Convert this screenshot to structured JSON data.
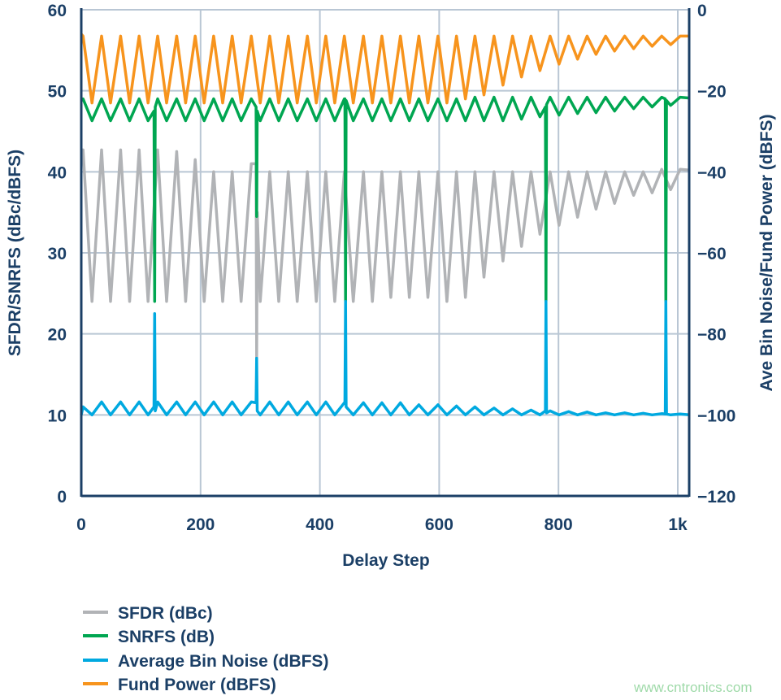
{
  "chart_data": {
    "type": "line",
    "xlabel": "Delay Step",
    "ylabel_left": "SFDR/SNRFS (dBc/dBFS)",
    "ylabel_right": "Ave Bin Noise/Fund Power (dBFS)",
    "xlim": [
      0,
      1020
    ],
    "ylim_left": [
      0,
      60
    ],
    "ylim_right": [
      -120,
      0
    ],
    "grid": true,
    "legend_position": "bottom-left",
    "x_ticks": [
      {
        "value": 0,
        "label": "0"
      },
      {
        "value": 200,
        "label": "200"
      },
      {
        "value": 400,
        "label": "400"
      },
      {
        "value": 600,
        "label": "600"
      },
      {
        "value": 800,
        "label": "800"
      },
      {
        "value": 1000,
        "label": "1k"
      }
    ],
    "y_ticks_left": [
      "0",
      "10",
      "20",
      "30",
      "40",
      "50",
      "60"
    ],
    "y_ticks_right": [
      "−120",
      "−100",
      "−80",
      "−60",
      "−40",
      "−20",
      "0"
    ],
    "series": [
      {
        "name": "SFDR (dBc)",
        "axis": "left",
        "color": "#b1b3b6",
        "points": [
          [
            0,
            42.7
          ],
          [
            3,
            42.7
          ],
          [
            18,
            24
          ],
          [
            34,
            42.7
          ],
          [
            49,
            24
          ],
          [
            66,
            42.7
          ],
          [
            81,
            24
          ],
          [
            97,
            42.7
          ],
          [
            112,
            24
          ],
          [
            128,
            42.7
          ],
          [
            143,
            24
          ],
          [
            160,
            42.5
          ],
          [
            175,
            24
          ],
          [
            191,
            41.5
          ],
          [
            206,
            24
          ],
          [
            222,
            40
          ],
          [
            237,
            24
          ],
          [
            253,
            40
          ],
          [
            268,
            24
          ],
          [
            285,
            41
          ],
          [
            293,
            41
          ],
          [
            294,
            17
          ],
          [
            295,
            35
          ],
          [
            300,
            24
          ],
          [
            316,
            40
          ],
          [
            331,
            24
          ],
          [
            347,
            40
          ],
          [
            362,
            24
          ],
          [
            379,
            40
          ],
          [
            394,
            24
          ],
          [
            410,
            40
          ],
          [
            425,
            24
          ],
          [
            441,
            40
          ],
          [
            456,
            24
          ],
          [
            473,
            40
          ],
          [
            488,
            24
          ],
          [
            504,
            40
          ],
          [
            519,
            24.5
          ],
          [
            535,
            40
          ],
          [
            550,
            24.5
          ],
          [
            566,
            40
          ],
          [
            581,
            24.5
          ],
          [
            598,
            40
          ],
          [
            613,
            24
          ],
          [
            629,
            40
          ],
          [
            644,
            24.5
          ],
          [
            660,
            40
          ],
          [
            675,
            27
          ],
          [
            692,
            40
          ],
          [
            707,
            29
          ],
          [
            723,
            40
          ],
          [
            738,
            30.8
          ],
          [
            754,
            40
          ],
          [
            769,
            32.3
          ],
          [
            786,
            40
          ],
          [
            801,
            33.4
          ],
          [
            817,
            40
          ],
          [
            832,
            34.4
          ],
          [
            848,
            40
          ],
          [
            863,
            35.4
          ],
          [
            879,
            40
          ],
          [
            894,
            36.1
          ],
          [
            911,
            40
          ],
          [
            926,
            37.1
          ],
          [
            942,
            40
          ],
          [
            957,
            37.4
          ],
          [
            973,
            40.3
          ],
          [
            988,
            37.8
          ],
          [
            1004,
            40.3
          ],
          [
            1020,
            40.2
          ]
        ]
      },
      {
        "name": "SNRFS (dB)",
        "axis": "left",
        "color": "#00a651",
        "points": [
          [
            0,
            49
          ],
          [
            3,
            49
          ],
          [
            18,
            46.3
          ],
          [
            34,
            49
          ],
          [
            49,
            46.3
          ],
          [
            66,
            49
          ],
          [
            81,
            46.3
          ],
          [
            97,
            49
          ],
          [
            112,
            46.3
          ],
          [
            122,
            47.5
          ],
          [
            123,
            24
          ],
          [
            124,
            48
          ],
          [
            128,
            49
          ],
          [
            143,
            46.3
          ],
          [
            160,
            49
          ],
          [
            175,
            46.3
          ],
          [
            191,
            49
          ],
          [
            206,
            46.3
          ],
          [
            222,
            49
          ],
          [
            237,
            46.3
          ],
          [
            253,
            49
          ],
          [
            268,
            46.3
          ],
          [
            285,
            49
          ],
          [
            293,
            48
          ],
          [
            294,
            34.5
          ],
          [
            295,
            47.5
          ],
          [
            300,
            46.3
          ],
          [
            316,
            49
          ],
          [
            331,
            46.3
          ],
          [
            347,
            49
          ],
          [
            362,
            46.3
          ],
          [
            379,
            49
          ],
          [
            394,
            46.3
          ],
          [
            410,
            49
          ],
          [
            425,
            46.3
          ],
          [
            441,
            49
          ],
          [
            442,
            49
          ],
          [
            443,
            24
          ],
          [
            444,
            48.8
          ],
          [
            456,
            46.3
          ],
          [
            473,
            49
          ],
          [
            488,
            46.3
          ],
          [
            504,
            49
          ],
          [
            519,
            46.3
          ],
          [
            535,
            49
          ],
          [
            550,
            46.3
          ],
          [
            566,
            49
          ],
          [
            581,
            46.3
          ],
          [
            598,
            49
          ],
          [
            613,
            46.3
          ],
          [
            629,
            49
          ],
          [
            644,
            46.3
          ],
          [
            660,
            49.2
          ],
          [
            675,
            46.3
          ],
          [
            692,
            49.2
          ],
          [
            707,
            46.3
          ],
          [
            723,
            49.2
          ],
          [
            738,
            46.5
          ],
          [
            754,
            49.2
          ],
          [
            769,
            46.8
          ],
          [
            778,
            48
          ],
          [
            779,
            24
          ],
          [
            780,
            48.3
          ],
          [
            786,
            49.2
          ],
          [
            801,
            47
          ],
          [
            817,
            49.2
          ],
          [
            832,
            47.2
          ],
          [
            848,
            49.2
          ],
          [
            863,
            47.3
          ],
          [
            879,
            49.2
          ],
          [
            894,
            47.5
          ],
          [
            911,
            49.2
          ],
          [
            926,
            47.8
          ],
          [
            942,
            49.2
          ],
          [
            957,
            48
          ],
          [
            973,
            49.2
          ],
          [
            979,
            49
          ],
          [
            980,
            24
          ],
          [
            981,
            48.8
          ],
          [
            988,
            48.2
          ],
          [
            1004,
            49.2
          ],
          [
            1020,
            49.1
          ]
        ]
      },
      {
        "name": "Average Bin Noise (dBFS)",
        "axis": "right",
        "color": "#00a9e0",
        "points": [
          [
            0,
            -100
          ],
          [
            3,
            -98
          ],
          [
            18,
            -100
          ],
          [
            34,
            -96.8
          ],
          [
            49,
            -100
          ],
          [
            66,
            -96.8
          ],
          [
            81,
            -100
          ],
          [
            97,
            -96.8
          ],
          [
            112,
            -100
          ],
          [
            122,
            -98
          ],
          [
            123,
            -75
          ],
          [
            124,
            -99
          ],
          [
            128,
            -96.8
          ],
          [
            143,
            -100
          ],
          [
            160,
            -96.8
          ],
          [
            175,
            -100
          ],
          [
            191,
            -96.8
          ],
          [
            206,
            -100
          ],
          [
            222,
            -96.8
          ],
          [
            237,
            -100
          ],
          [
            253,
            -96.8
          ],
          [
            268,
            -100
          ],
          [
            285,
            -96.8
          ],
          [
            293,
            -97
          ],
          [
            294,
            -86
          ],
          [
            295,
            -99
          ],
          [
            300,
            -100
          ],
          [
            316,
            -96.8
          ],
          [
            331,
            -100
          ],
          [
            347,
            -96.8
          ],
          [
            362,
            -100
          ],
          [
            379,
            -96.8
          ],
          [
            394,
            -100
          ],
          [
            410,
            -96.8
          ],
          [
            425,
            -100
          ],
          [
            441,
            -97
          ],
          [
            442,
            -97
          ],
          [
            443,
            -72
          ],
          [
            444,
            -98
          ],
          [
            456,
            -100
          ],
          [
            473,
            -97
          ],
          [
            488,
            -100
          ],
          [
            504,
            -97
          ],
          [
            519,
            -100
          ],
          [
            535,
            -97
          ],
          [
            550,
            -100
          ],
          [
            566,
            -97.5
          ],
          [
            581,
            -100
          ],
          [
            598,
            -97.5
          ],
          [
            613,
            -100
          ],
          [
            629,
            -97.8
          ],
          [
            644,
            -100
          ],
          [
            660,
            -98
          ],
          [
            675,
            -100
          ],
          [
            692,
            -98.3
          ],
          [
            707,
            -100
          ],
          [
            723,
            -98.5
          ],
          [
            738,
            -100
          ],
          [
            754,
            -98.8
          ],
          [
            769,
            -100
          ],
          [
            778,
            -99
          ],
          [
            779,
            -72
          ],
          [
            780,
            -99.5
          ],
          [
            786,
            -99
          ],
          [
            801,
            -100
          ],
          [
            817,
            -99.2
          ],
          [
            832,
            -100
          ],
          [
            848,
            -99.3
          ],
          [
            863,
            -100
          ],
          [
            879,
            -99.5
          ],
          [
            894,
            -100
          ],
          [
            911,
            -99.5
          ],
          [
            926,
            -100
          ],
          [
            942,
            -99.6
          ],
          [
            957,
            -100
          ],
          [
            973,
            -99.7
          ],
          [
            979,
            -99.8
          ],
          [
            980,
            -72
          ],
          [
            981,
            -99.8
          ],
          [
            988,
            -100
          ],
          [
            1004,
            -99.8
          ],
          [
            1020,
            -100
          ]
        ]
      },
      {
        "name": "Fund Power (dBFS)",
        "axis": "right",
        "color": "#f7941d",
        "points": [
          [
            0,
            -6
          ],
          [
            3,
            -6.5
          ],
          [
            18,
            -23
          ],
          [
            34,
            -6.5
          ],
          [
            49,
            -23
          ],
          [
            66,
            -6.5
          ],
          [
            81,
            -23
          ],
          [
            97,
            -6.5
          ],
          [
            112,
            -23
          ],
          [
            128,
            -6.5
          ],
          [
            143,
            -23
          ],
          [
            160,
            -6.5
          ],
          [
            175,
            -23
          ],
          [
            191,
            -6.5
          ],
          [
            206,
            -23
          ],
          [
            222,
            -6.5
          ],
          [
            237,
            -23
          ],
          [
            253,
            -6.5
          ],
          [
            268,
            -23
          ],
          [
            285,
            -6.5
          ],
          [
            300,
            -23
          ],
          [
            316,
            -6.5
          ],
          [
            331,
            -23
          ],
          [
            347,
            -6.5
          ],
          [
            362,
            -23
          ],
          [
            379,
            -6.5
          ],
          [
            394,
            -23
          ],
          [
            410,
            -6.5
          ],
          [
            425,
            -23
          ],
          [
            441,
            -6.5
          ],
          [
            456,
            -23
          ],
          [
            473,
            -6.5
          ],
          [
            488,
            -23
          ],
          [
            504,
            -6.5
          ],
          [
            519,
            -23
          ],
          [
            535,
            -6.5
          ],
          [
            550,
            -23
          ],
          [
            566,
            -6.5
          ],
          [
            581,
            -23
          ],
          [
            598,
            -6.5
          ],
          [
            613,
            -23
          ],
          [
            629,
            -6.5
          ],
          [
            644,
            -22
          ],
          [
            660,
            -6.5
          ],
          [
            675,
            -21
          ],
          [
            692,
            -6.5
          ],
          [
            707,
            -18.6
          ],
          [
            723,
            -6.5
          ],
          [
            738,
            -16.6
          ],
          [
            754,
            -6.5
          ],
          [
            769,
            -15
          ],
          [
            786,
            -6.5
          ],
          [
            801,
            -13.4
          ],
          [
            817,
            -6.5
          ],
          [
            832,
            -12.2
          ],
          [
            848,
            -6.5
          ],
          [
            863,
            -11
          ],
          [
            879,
            -6.5
          ],
          [
            894,
            -10.2
          ],
          [
            911,
            -6.5
          ],
          [
            926,
            -9.6
          ],
          [
            942,
            -6.5
          ],
          [
            957,
            -9
          ],
          [
            973,
            -6.5
          ],
          [
            988,
            -8.6
          ],
          [
            1004,
            -6.5
          ],
          [
            1020,
            -6.5
          ]
        ]
      }
    ]
  },
  "watermark": "www.cntronics.com",
  "colors": {
    "axis": "#1b3f66",
    "grid": "#b9c6d4"
  }
}
